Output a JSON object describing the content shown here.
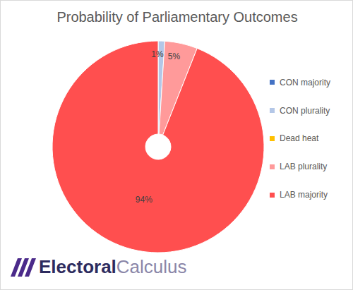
{
  "chart_data": {
    "type": "pie",
    "title": "Probability of Parliamentary Outcomes",
    "categories": [
      "CON majority",
      "CON plurality",
      "Dead heat",
      "LAB plurality",
      "LAB majority"
    ],
    "values": [
      0,
      1,
      0,
      5,
      94
    ],
    "value_labels": [
      null,
      "1%",
      null,
      "5%",
      "94%"
    ],
    "colors": [
      "#4472c4",
      "#b4c7e7",
      "#ffc000",
      "#ff9a9a",
      "#ff4f4f"
    ],
    "data_labels": true,
    "legend": "right"
  },
  "logo": [
    "Electoral",
    "Calculus"
  ]
}
